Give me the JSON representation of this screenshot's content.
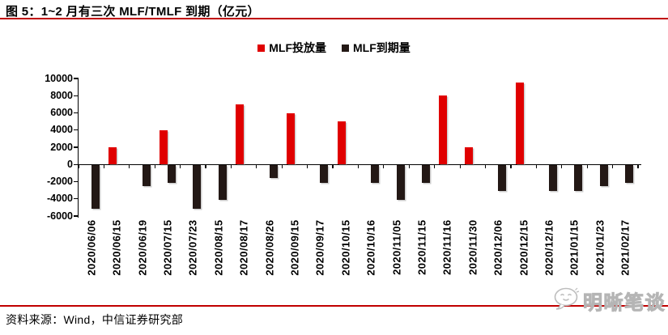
{
  "header": {
    "title": "图 5：1~2 月有三次 MLF/TMLF 到期（亿元）",
    "rule_color": "#c00000"
  },
  "chart_data": {
    "type": "bar",
    "title": "图 5：1~2 月有三次 MLF/TMLF 到期（亿元）",
    "unit": "亿元",
    "categories": [
      "2020/06/06",
      "2020/06/15",
      "2020/06/19",
      "2020/07/15",
      "2020/07/23",
      "2020/08/15",
      "2020/08/17",
      "2020/08/26",
      "2020/09/15",
      "2020/09/17",
      "2020/10/15",
      "2020/10/16",
      "2020/11/05",
      "2020/11/15",
      "2020/11/16",
      "2020/11/30",
      "2020/12/06",
      "2020/12/15",
      "2020/12/16",
      "2021/01/15",
      "2021/01/23",
      "2021/02/17"
    ],
    "series": [
      {
        "name": "MLF投放量",
        "color": "#e00000",
        "values": [
          null,
          2000,
          null,
          4000,
          null,
          null,
          7000,
          null,
          6000,
          null,
          5000,
          null,
          null,
          null,
          8000,
          2000,
          null,
          9500,
          null,
          null,
          null,
          null
        ]
      },
      {
        "name": "MLF到期量",
        "color": "#231815",
        "values": [
          -5000,
          null,
          -2400,
          -2000,
          -5000,
          -4000,
          null,
          -1500,
          null,
          -2000,
          null,
          -2000,
          -4000,
          -2000,
          null,
          null,
          -3000,
          null,
          -3000,
          -3000,
          -2400,
          -2000
        ]
      }
    ],
    "ylim": [
      -6000,
      10000
    ],
    "yticks": [
      10000,
      8000,
      6000,
      4000,
      2000,
      0,
      -2000,
      -4000,
      -6000
    ],
    "grid": false,
    "legend_position": "top-center"
  },
  "footer": {
    "source": "资料来源：Wind，中信证券研究部",
    "rule_color": "#c00000"
  },
  "watermark": {
    "text": "明晰笔谈",
    "icon": "chat-bubble-face-icon",
    "color": "#cccccc"
  }
}
